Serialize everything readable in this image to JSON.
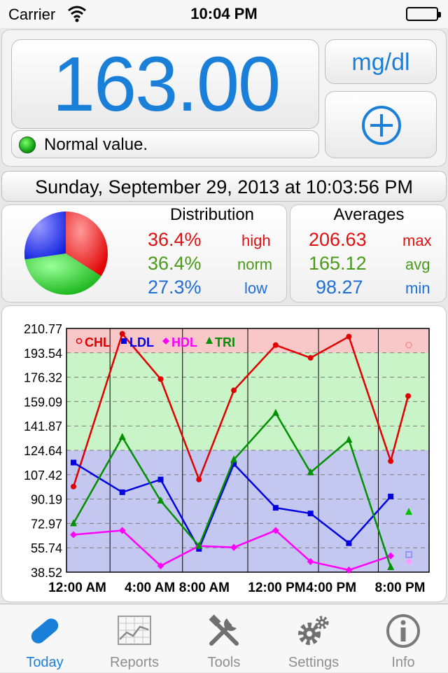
{
  "status_bar": {
    "carrier": "Carrier",
    "time": "10:04 PM"
  },
  "reading": {
    "value": "163.00",
    "unit": "mg/dl",
    "status": "Normal value.",
    "status_color": "#15a415"
  },
  "date_time": "Sunday, September 29, 2013 at 10:03:56 PM",
  "distribution": {
    "title": "Distribution",
    "rows": [
      {
        "percent": "36.4%",
        "label": "high",
        "color": "#e01010"
      },
      {
        "percent": "36.4%",
        "label": "norm",
        "color": "#4a9a1a"
      },
      {
        "percent": "27.3%",
        "label": "low",
        "color": "#1e6fd8"
      }
    ]
  },
  "averages": {
    "title": "Averages",
    "rows": [
      {
        "value": "206.63",
        "label": "max"
      },
      {
        "value": "165.12",
        "label": "avg"
      },
      {
        "value": "98.27",
        "label": "min"
      }
    ]
  },
  "chart_data": {
    "type": "line",
    "y_ticks": [
      "210.77",
      "193.54",
      "176.32",
      "159.09",
      "141.87",
      "124.64",
      "107.42",
      "90.19",
      "72.97",
      "55.74",
      "38.52"
    ],
    "x_ticks": [
      "12:00 AM",
      "4:00 AM",
      "8:00 AM",
      "12:00 PM",
      "4:00 PM",
      "8:00 PM"
    ],
    "ylim": [
      38.52,
      210.77
    ],
    "bands": [
      {
        "name": "high",
        "from": 193.54,
        "to": 210.77,
        "color": "#f8c8c8"
      },
      {
        "name": "normal",
        "from": 124.64,
        "to": 193.54,
        "color": "#c8f4c8"
      },
      {
        "name": "low",
        "from": 38.52,
        "to": 124.64,
        "color": "#c4c8f0"
      }
    ],
    "series": [
      {
        "name": "CHL",
        "color": "#e00000",
        "marker": "circle",
        "values": [
          99,
          207,
          175,
          104,
          167,
          199,
          190,
          205,
          117,
          163
        ]
      },
      {
        "name": "LDL",
        "color": "#0000e0",
        "marker": "square",
        "values": [
          116,
          95,
          104,
          55,
          115,
          84,
          80,
          59,
          92,
          null
        ]
      },
      {
        "name": "HDL",
        "color": "#ff00ff",
        "marker": "diamond",
        "values": [
          65,
          68,
          43,
          57,
          56,
          68,
          46,
          40,
          50,
          null
        ]
      },
      {
        "name": "TRI",
        "color": "#009000",
        "marker": "triangle",
        "values": [
          73,
          134,
          89,
          57,
          118,
          151,
          109,
          132,
          42,
          null
        ]
      }
    ],
    "x_positions": [
      0.0,
      0.14,
      0.25,
      0.36,
      0.46,
      0.58,
      0.68,
      0.79,
      0.91,
      0.96
    ]
  },
  "tabs": [
    {
      "label": "Today",
      "icon": "pill-icon",
      "active": true
    },
    {
      "label": "Reports",
      "icon": "chart-icon",
      "active": false
    },
    {
      "label": "Tools",
      "icon": "tools-icon",
      "active": false
    },
    {
      "label": "Settings",
      "icon": "gear-icon",
      "active": false
    },
    {
      "label": "Info",
      "icon": "info-icon",
      "active": false
    }
  ]
}
